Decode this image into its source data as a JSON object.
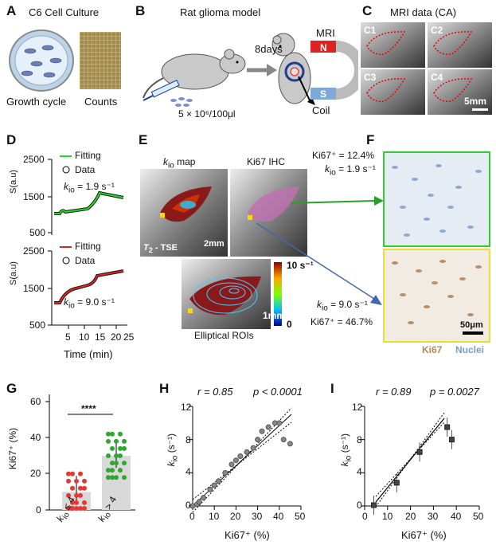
{
  "panelA": {
    "letter": "A",
    "title": "C6 Cell Culture",
    "label_growth": "Growth cycle",
    "label_counts": "Counts"
  },
  "panelB": {
    "letter": "B",
    "title": "Rat glioma model",
    "arrow_label": "8days",
    "mri_label": "MRI",
    "pole_n": "N",
    "pole_s": "S",
    "coil_label": "Coil",
    "dose_label": "5 × 10⁶/100μl"
  },
  "panelC": {
    "letter": "C",
    "title": "MRI data (CA)",
    "tiles": [
      "C1",
      "C2",
      "C3",
      "C4"
    ],
    "scale_label": "5mm"
  },
  "panelD": {
    "letter": "D",
    "top": {
      "legend_fit": "Fitting",
      "legend_data": "Data",
      "kio_text": "k",
      "kio_sub": "io",
      "kio_val": " = 1.9 s⁻¹",
      "ylabel": "S(a.u)",
      "yticks": [
        "2500",
        "1500",
        "500"
      ],
      "fit_color": "#22dd22"
    },
    "bottom": {
      "legend_fit": "Fitting",
      "legend_data": "Data",
      "kio_text": "k",
      "kio_sub": "io",
      "kio_val": " = 9.0 s⁻¹",
      "ylabel": "S(a.u)",
      "yticks": [
        "2500",
        "1500",
        "500"
      ],
      "fit_color": "#dd2222"
    },
    "xticks": [
      "5",
      "10",
      "15",
      "20",
      "25"
    ],
    "xlabel": "Time (min)"
  },
  "panelE": {
    "letter": "E",
    "map_title_k": "k",
    "map_title_sub": "io",
    "map_title_rest": " map",
    "ihc_title": "Ki67 IHC",
    "t2_label": "T",
    "t2_sub": "2",
    "t2_rest": " - TSE",
    "scale1": "2mm",
    "scale2": "1mm",
    "colorbar_top": "10 s⁻¹",
    "colorbar_bottom": "0",
    "ellip_label": "Elliptical ROIs"
  },
  "panelF": {
    "letter": "F",
    "top_ki": "Ki67⁺ = 12.4%",
    "top_k": "k",
    "top_k_sub": "io",
    "top_k_val": " = 1.9 s⁻¹",
    "bot_k": "k",
    "bot_k_sub": "io",
    "bot_k_val": " = 9.0 s⁻¹",
    "bot_ki": "Ki67⁺ = 46.7%",
    "scale": "50μm",
    "legend_ki67": "Ki67",
    "legend_nuclei": "Nuclei"
  },
  "panelG": {
    "letter": "G",
    "ylabel": "Ki67⁺ (%)",
    "yticks": [
      "60",
      "40",
      "20",
      "0"
    ],
    "sig": "****",
    "cat1": "k",
    "cat1_sub": "io",
    "cat1_rest": " ≤ 4",
    "cat2": "k",
    "cat2_sub": "io",
    "cat2_rest": " > 4"
  },
  "panelH": {
    "letter": "H",
    "r_text": "r = 0.85",
    "p_text": "p < 0.0001",
    "ylabel": "k",
    "ylabel_sub": "io",
    "ylabel_rest": " (s⁻¹)",
    "xlabel": "Ki67⁺ (%)",
    "xticks": [
      "0",
      "10",
      "20",
      "30",
      "40",
      "50"
    ],
    "yticks": [
      "12",
      "8",
      "4",
      "0"
    ]
  },
  "panelI": {
    "letter": "I",
    "r_text": "r = 0.89",
    "p_text": "p = 0.0027",
    "ylabel": "k",
    "ylabel_sub": "io",
    "ylabel_rest": " (s⁻¹)",
    "xlabel": "Ki67⁺ (%)",
    "xticks": [
      "0",
      "10",
      "20",
      "30",
      "40",
      "50"
    ],
    "yticks": [
      "12",
      "8",
      "4",
      "0"
    ]
  },
  "chart_data": [
    {
      "type": "bar",
      "categories": [
        "kio ≤ 4",
        "kio > 4"
      ],
      "values": [
        10,
        30
      ],
      "ylim": [
        0,
        60
      ],
      "ylabel": "Ki67⁺ (%)"
    },
    {
      "type": "scatter",
      "x": [
        0,
        2,
        3,
        5,
        8,
        10,
        12,
        15,
        18,
        20,
        22,
        25,
        28,
        30,
        32,
        35,
        38,
        40,
        42,
        45
      ],
      "y": [
        0,
        0.2,
        0.5,
        1,
        2,
        2.5,
        3,
        4,
        5,
        5.5,
        6,
        6.5,
        7,
        8,
        9,
        9.5,
        10,
        10,
        8,
        7.5
      ],
      "xlim": [
        0,
        50
      ],
      "ylim": [
        0,
        12
      ],
      "xlabel": "Ki67⁺ (%)",
      "ylabel": "kio (s⁻¹)"
    },
    {
      "type": "scatter",
      "x": [
        4,
        14,
        24,
        36,
        38
      ],
      "y": [
        0.1,
        2.8,
        6.5,
        9.5,
        8
      ],
      "xlim": [
        0,
        50
      ],
      "ylim": [
        0,
        12
      ],
      "xlabel": "Ki67⁺ (%)",
      "ylabel": "kio (s⁻¹)"
    }
  ]
}
